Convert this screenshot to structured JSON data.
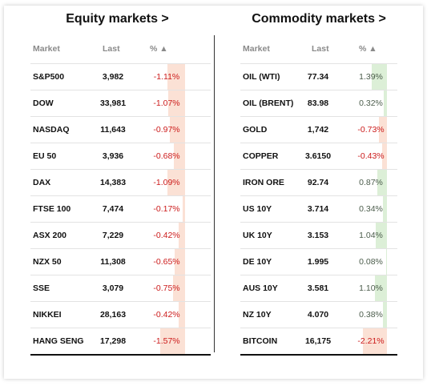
{
  "colors": {
    "negative": "#cc1b1b",
    "negative_fill": "#fbe1d5",
    "positive_fill": "#dcefd7",
    "sort_icon": "up-triangle"
  },
  "equity": {
    "title": "Equity markets >",
    "headers": {
      "market": "Market",
      "last": "Last",
      "pct": "% ▲"
    },
    "rows": [
      {
        "market": "S&P500",
        "last": "3,982",
        "pct": "-1.11%",
        "change": -1.11
      },
      {
        "market": "DOW",
        "last": "33,981",
        "pct": "-1.07%",
        "change": -1.07
      },
      {
        "market": "NASDAQ",
        "last": "11,643",
        "pct": "-0.97%",
        "change": -0.97
      },
      {
        "market": "EU 50",
        "last": "3,936",
        "pct": "-0.68%",
        "change": -0.68
      },
      {
        "market": "DAX",
        "last": "14,383",
        "pct": "-1.09%",
        "change": -1.09
      },
      {
        "market": "FTSE 100",
        "last": "7,474",
        "pct": "-0.17%",
        "change": -0.17
      },
      {
        "market": "ASX 200",
        "last": "7,229",
        "pct": "-0.42%",
        "change": -0.42
      },
      {
        "market": "NZX 50",
        "last": "11,308",
        "pct": "-0.65%",
        "change": -0.65
      },
      {
        "market": "SSE",
        "last": "3,079",
        "pct": "-0.75%",
        "change": -0.75
      },
      {
        "market": "NIKKEI",
        "last": "28,163",
        "pct": "-0.42%",
        "change": -0.42
      },
      {
        "market": "HANG SENG",
        "last": "17,298",
        "pct": "-1.57%",
        "change": -1.57
      }
    ]
  },
  "commodity": {
    "title": "Commodity markets >",
    "headers": {
      "market": "Market",
      "last": "Last",
      "pct": "% ▲"
    },
    "rows": [
      {
        "market": "OIL (WTI)",
        "last": "77.34",
        "pct": "1.39%",
        "change": 1.39
      },
      {
        "market": "OIL (BRENT)",
        "last": "83.98",
        "pct": "0.32%",
        "change": 0.32
      },
      {
        "market": "GOLD",
        "last": "1,742",
        "pct": "-0.73%",
        "change": -0.73
      },
      {
        "market": "COPPER",
        "last": "3.6150",
        "pct": "-0.43%",
        "change": -0.43
      },
      {
        "market": "IRON ORE",
        "last": "92.74",
        "pct": "0.87%",
        "change": 0.87
      },
      {
        "market": "US 10Y",
        "last": "3.714",
        "pct": "0.34%",
        "change": 0.34
      },
      {
        "market": "UK 10Y",
        "last": "3.153",
        "pct": "1.04%",
        "change": 1.04
      },
      {
        "market": "DE 10Y",
        "last": "1.995",
        "pct": "0.08%",
        "change": 0.08
      },
      {
        "market": "AUS 10Y",
        "last": "3.581",
        "pct": "1.10%",
        "change": 1.1
      },
      {
        "market": "NZ 10Y",
        "last": "4.070",
        "pct": "0.38%",
        "change": 0.38
      },
      {
        "market": "BITCOIN",
        "last": "16,175",
        "pct": "-2.21%",
        "change": -2.21
      }
    ]
  }
}
